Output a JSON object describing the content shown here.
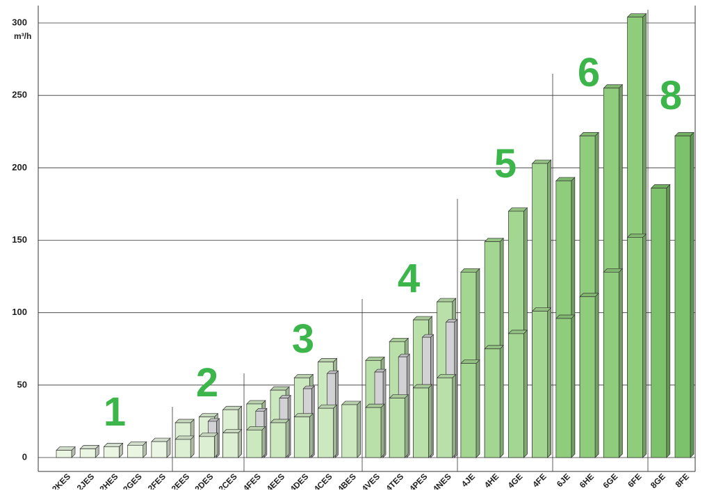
{
  "chart_data": {
    "type": "bar",
    "y_label": "m³/h",
    "categories": [
      "2KES",
      "2JES",
      "2HES",
      "2GES",
      "2FES",
      "2EES",
      "2DES",
      "2CES",
      "4FES",
      "4EES",
      "4DES",
      "4CES",
      "4BES",
      "4VES",
      "4TES",
      "4PES",
      "4NES",
      "4JE",
      "4HE",
      "4GE",
      "4FE",
      "6JE",
      "6HE",
      "6GE",
      "6FE",
      "8GE",
      "8FE"
    ],
    "colors": [
      "#eaf6e2",
      "#eaf6e2",
      "#eaf6e2",
      "#eaf6e2",
      "#eaf6e2",
      "#dcefd2",
      "#dcefd2",
      "#dcefd2",
      "#cce8bf",
      "#cce8bf",
      "#cce8bf",
      "#cce8bf",
      "#cce8bf",
      "#b9e0a9",
      "#b9e0a9",
      "#b9e0a9",
      "#b9e0a9",
      "#a3d690",
      "#a3d690",
      "#a3d690",
      "#a3d690",
      "#8fcc7c",
      "#8fcc7c",
      "#8fcc7c",
      "#8fcc7c",
      "#7cc26a",
      "#7cc26a"
    ],
    "series": [
      {
        "values": [
          5,
          6,
          7.5,
          8.5,
          11,
          24,
          28,
          33,
          37,
          46.5,
          55,
          66,
          36.5,
          67,
          80,
          95,
          107.5,
          128,
          149,
          170,
          203,
          191,
          222,
          255,
          304,
          186,
          222
        ]
      },
      {
        "color": "#d2d2d4",
        "values": [
          null,
          null,
          null,
          null,
          null,
          null,
          25,
          null,
          32,
          41,
          47.5,
          58,
          null,
          59,
          69.5,
          83,
          93.5,
          null,
          null,
          null,
          null,
          null,
          null,
          null,
          null,
          null,
          null
        ]
      },
      {
        "values": [
          null,
          null,
          null,
          null,
          null,
          12.5,
          14.5,
          17,
          19,
          24,
          28,
          34,
          null,
          34.5,
          41,
          48,
          55,
          65,
          75,
          85.5,
          101,
          96,
          111,
          128,
          152,
          null,
          null
        ]
      }
    ],
    "group_labels": [
      "1",
      "2",
      "3",
      "4",
      "5",
      "6",
      "8"
    ],
    "ylim": [
      0,
      300
    ],
    "yticks": [
      0,
      50,
      100,
      150,
      200,
      250,
      300
    ],
    "grid": true
  }
}
